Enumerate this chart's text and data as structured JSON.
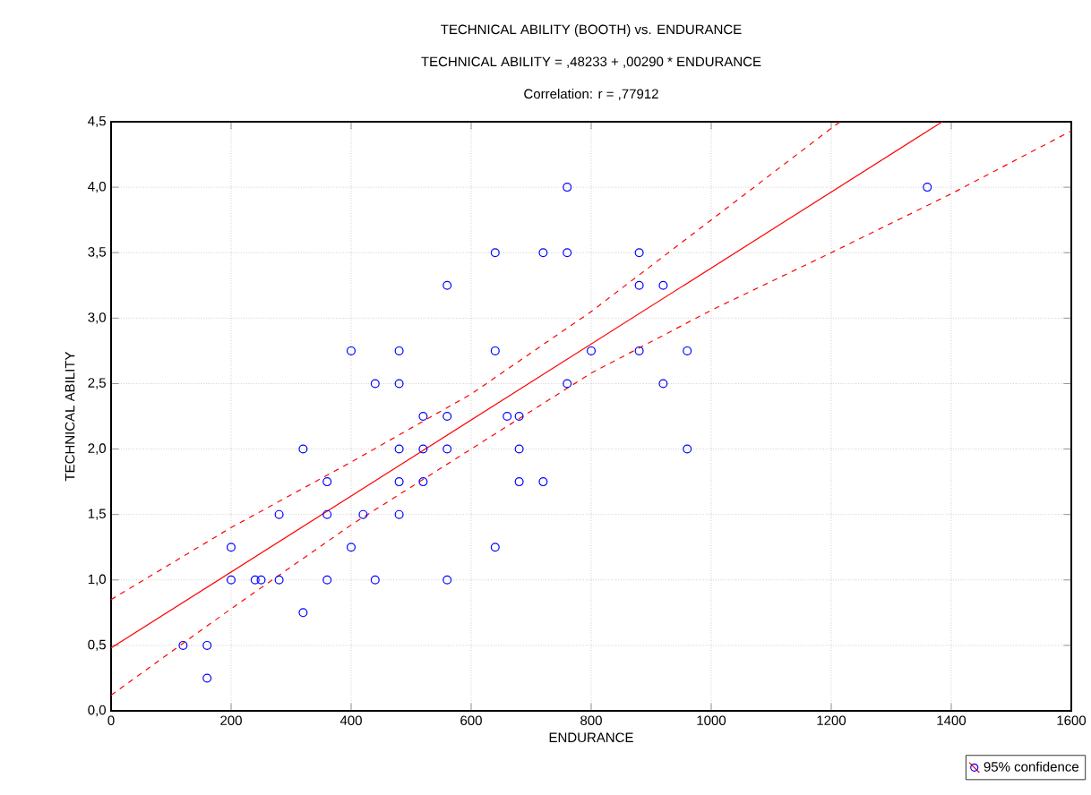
{
  "chart_data": {
    "type": "scatter",
    "title": "TECHNICAL ABILITY (BOOTH) vs. ENDURANCE",
    "subtitle": "TECHNICAL ABILITY = ,48233 + ,00290 * ENDURANCE",
    "annotations": [
      "Correlation: r = ,77912"
    ],
    "xlabel": "ENDURANCE",
    "ylabel": "TECHNICAL ABILITY",
    "xlim": [
      0,
      1600
    ],
    "xticks": [
      0,
      200,
      400,
      600,
      800,
      1000,
      1200,
      1400,
      1600
    ],
    "ylim": [
      0,
      4.5
    ],
    "yticks": [
      {
        "value": 0,
        "label": "0,0"
      },
      {
        "value": 0.5,
        "label": "0,5"
      },
      {
        "value": 1,
        "label": "1,0"
      },
      {
        "value": 1.5,
        "label": "1,5"
      },
      {
        "value": 2,
        "label": "2,0"
      },
      {
        "value": 2.5,
        "label": "2,5"
      },
      {
        "value": 3,
        "label": "3,0"
      },
      {
        "value": 3.5,
        "label": "3,5"
      },
      {
        "value": 4,
        "label": "4,0"
      },
      {
        "value": 4.5,
        "label": "4,5"
      }
    ],
    "grid": true,
    "legend": "bottom right",
    "series": [
      {
        "marker": "circle",
        "color": "#0000ff",
        "x": [
          120,
          160,
          160,
          200,
          200,
          240,
          250,
          280,
          280,
          320,
          320,
          360,
          360,
          360,
          400,
          400,
          420,
          440,
          440,
          480,
          480,
          480,
          480,
          480,
          520,
          520,
          520,
          560,
          560,
          560,
          560,
          640,
          640,
          640,
          660,
          680,
          680,
          680,
          720,
          720,
          760,
          760,
          760,
          800,
          880,
          880,
          880,
          920,
          920,
          960,
          960,
          1360
        ],
        "values": [
          0.5,
          0.5,
          0.25,
          1.0,
          1.25,
          1.0,
          1.0,
          1.0,
          1.5,
          2.0,
          0.75,
          1.75,
          1.5,
          1.0,
          2.75,
          1.25,
          1.5,
          2.5,
          1.0,
          2.75,
          2.5,
          2.0,
          1.75,
          1.5,
          2.25,
          2.0,
          1.75,
          3.25,
          2.25,
          2.0,
          1.0,
          3.5,
          2.75,
          1.25,
          2.25,
          2.25,
          2.0,
          1.75,
          3.5,
          1.75,
          4.0,
          3.5,
          2.5,
          2.75,
          3.5,
          3.25,
          2.75,
          3.25,
          2.5,
          2.75,
          2.0,
          4.0
        ]
      },
      {
        "type": "line",
        "name": "95% confidence",
        "color": "#ff0000",
        "line_style": "solid",
        "x": [
          0,
          1385
        ],
        "values": [
          0.48,
          4.5
        ]
      },
      {
        "type": "line",
        "color": "#ff0000",
        "line_style": "dashed",
        "x": [
          0,
          200,
          400,
          600,
          800,
          1000,
          1200,
          1215
        ],
        "values": [
          0.85,
          1.4,
          1.9,
          2.42,
          3.05,
          3.75,
          4.45,
          4.5
        ]
      },
      {
        "type": "line",
        "color": "#ff0000",
        "line_style": "dashed",
        "x": [
          0,
          200,
          400,
          600,
          800,
          1000,
          1200,
          1400,
          1600
        ],
        "values": [
          0.12,
          0.78,
          1.42,
          2.0,
          2.58,
          3.06,
          3.5,
          3.95,
          4.43
        ]
      }
    ]
  }
}
